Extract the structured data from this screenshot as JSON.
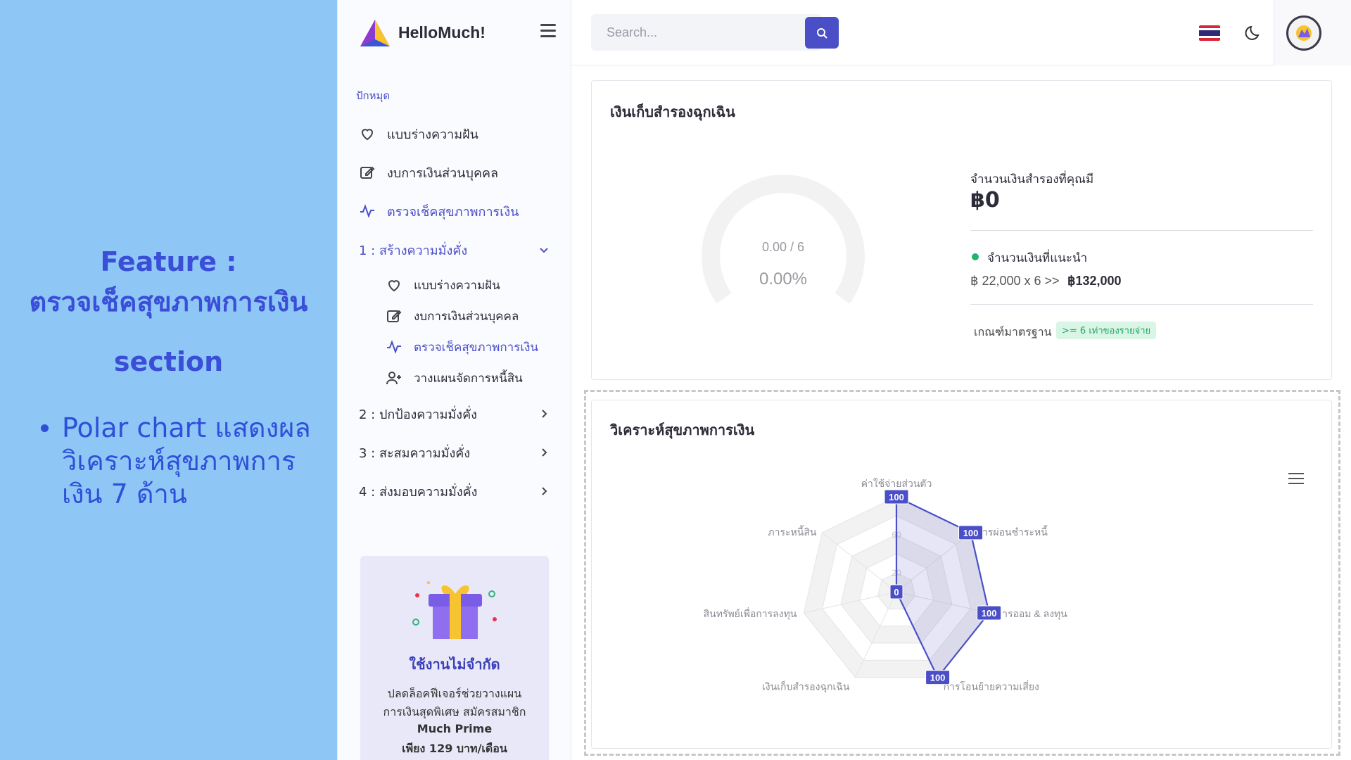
{
  "feature": {
    "title_prefix": "Feature :",
    "title_name": "ตรวจเช็คสุขภาพการเงิน",
    "title_suffix": "section",
    "bullets": [
      "Polar chart แสดงผลวิเคราะห์สุขภาพการเงิน 7 ด้าน"
    ]
  },
  "sidebar": {
    "brand": "HelloMuch!",
    "section_label": "ปักหมุด",
    "pinned": [
      {
        "label": "แบบร่างความฝัน",
        "icon": "heart-icon"
      },
      {
        "label": "งบการเงินส่วนบุคคล",
        "icon": "edit-icon"
      },
      {
        "label": "ตรวจเช็คสุขภาพการเงิน",
        "icon": "pulse-icon",
        "active": true
      }
    ],
    "groups": [
      {
        "label": "1 : สร้างความมั่งคั่ง",
        "expanded": true,
        "items": [
          {
            "label": "แบบร่างความฝัน",
            "icon": "heart-icon"
          },
          {
            "label": "งบการเงินส่วนบุคคล",
            "icon": "edit-icon"
          },
          {
            "label": "ตรวจเช็คสุขภาพการเงิน",
            "icon": "pulse-icon",
            "active": true
          },
          {
            "label": "วางแผนจัดการหนี้สิน",
            "icon": "user-plus-icon"
          }
        ]
      },
      {
        "label": "2 : ปกป้องความมั่งคั่ง",
        "expanded": false
      },
      {
        "label": "3 : สะสมความมั่งคั่ง",
        "expanded": false
      },
      {
        "label": "4 : ส่งมอบความมั่งคั่ง",
        "expanded": false
      }
    ],
    "promo": {
      "title": "ใช้งานไม่จำกัด",
      "line1": "ปลดล็อคฟีเจอร์ช่วยวางแผน",
      "line2": "การเงินสุดพิเศษ สมัครสมาชิก",
      "line3": "Much Prime",
      "line4": "เพียง 129 บาท/เดือน"
    }
  },
  "topbar": {
    "search_placeholder": "Search...",
    "language_flag": "thailand-flag",
    "theme_icon": "moon-icon"
  },
  "emergency": {
    "title": "เงินเก็บสำรองฉุกเฉิน",
    "gauge_ratio": "0.00 / 6",
    "gauge_percent": "0.00%",
    "gauge_value": 0,
    "have_label": "จำนวนเงินสำรองที่คุณมี",
    "have_value": "฿0",
    "recommended_label": "จำนวนเงินที่แนะนำ",
    "recommended_formula": "฿ 22,000 x 6 >>",
    "recommended_total": "฿132,000",
    "standard_label": "เกณฑ์มาตรฐาน",
    "standard_badge": ">= 6 เท่าของรายจ่าย",
    "colors": {
      "positive": "#1fb46a",
      "gauge_track": "#f2f2f2"
    }
  },
  "analysis": {
    "title": "วิเคราะห์สุขภาพการเงิน"
  },
  "chart_data": {
    "type": "radar",
    "title": "วิเคราะห์สุขภาพการเงิน",
    "categories": [
      "ค่าใช้จ่ายส่วนตัว",
      "การผ่อนชำระหนี้",
      "การออม & ลงทุน",
      "การโอนย้ายความเสี่ยง",
      "เงินเก็บสำรองฉุกเฉิน",
      "สินทรัพย์เพื่อการลงทุน",
      "ภาระหนี้สิน"
    ],
    "values": [
      100,
      100,
      100,
      100,
      0,
      0,
      0
    ],
    "data_labels": [
      "100",
      "100",
      "100",
      "100",
      "0",
      "0",
      "0"
    ],
    "tick_labels": [
      "20",
      "60"
    ],
    "rmax": 100,
    "color": "#4b4fc7"
  }
}
